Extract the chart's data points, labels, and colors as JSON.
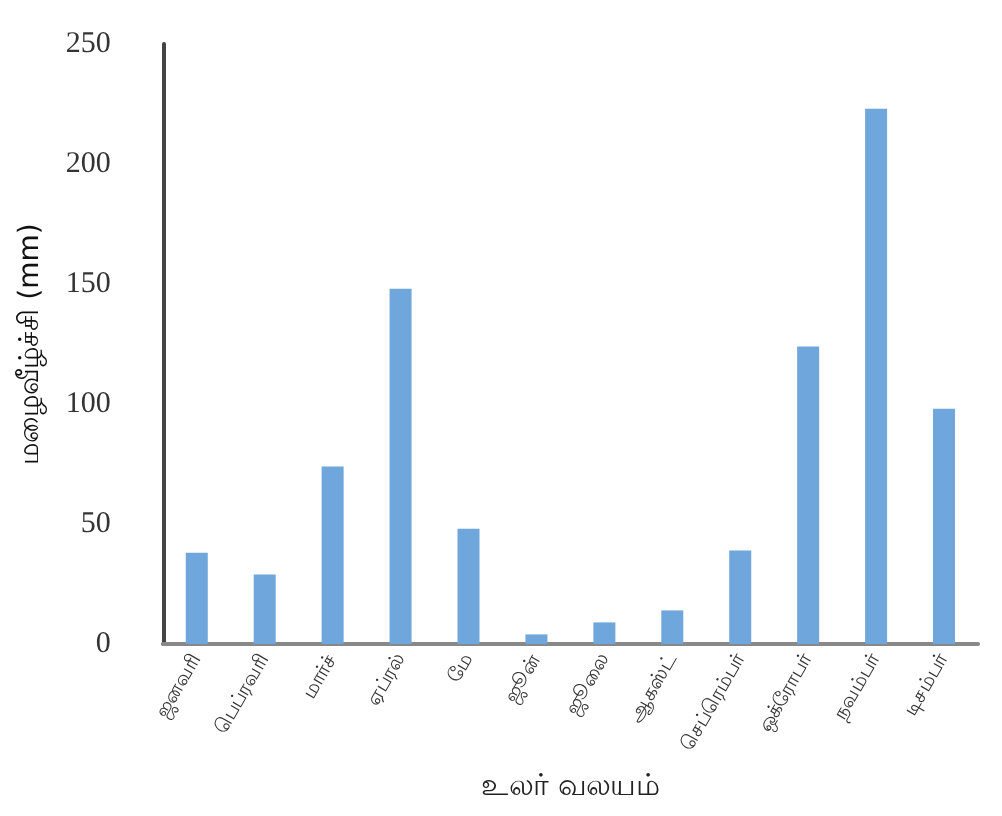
{
  "chart_data": {
    "type": "bar",
    "xlabel": "உலர் வலயம்",
    "ylabel": "மழைவீழ்ச்சி (mm)",
    "categories": [
      "ஜனவரி",
      "பெப்ரவரி",
      "மார்ச்",
      "ஏப்ரல்",
      "மே",
      "ஜூன்",
      "ஜூலை",
      "ஆகஸ்ட்",
      "செப்ரெம்பர்",
      "ஒக்ரோபர்",
      "நவம்பர்",
      "டிசம்பர்"
    ],
    "values": [
      38,
      29,
      74,
      148,
      48,
      4,
      9,
      14,
      39,
      124,
      223,
      98
    ],
    "color": "#6fa6dc",
    "ylim": [
      0,
      250
    ],
    "yticks": [
      0,
      50,
      100,
      150,
      200,
      250
    ],
    "grid": false
  }
}
